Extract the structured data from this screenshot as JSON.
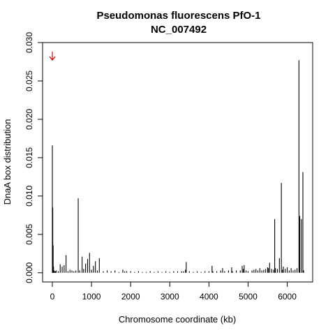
{
  "chart_data": {
    "type": "bar",
    "title": "Pseudomonas fluorescens PfO-1",
    "subtitle": "NC_007492",
    "xlabel": "Chromosome coordinate (kb)",
    "ylabel": "DnaA box distribution",
    "xlim": [
      -250,
      6650
    ],
    "ylim": [
      -0.0012,
      0.03
    ],
    "xticks": [
      0,
      1000,
      2000,
      3000,
      4000,
      5000,
      6000
    ],
    "yticks": [
      0.0,
      0.005,
      0.01,
      0.015,
      0.02,
      0.025,
      0.03
    ],
    "ytick_labels": [
      "0.000",
      "0.005",
      "0.010",
      "0.015",
      "0.020",
      "0.025",
      "0.030"
    ],
    "arrow_marker": {
      "x": 0,
      "color": "#cc0000"
    },
    "line_color": "#000000",
    "grid": false,
    "x": [
      0,
      10,
      20,
      30,
      40,
      60,
      80,
      100,
      150,
      200,
      250,
      300,
      350,
      400,
      450,
      500,
      550,
      600,
      660,
      700,
      760,
      800,
      850,
      900,
      950,
      1000,
      1050,
      1100,
      1150,
      1200,
      1300,
      1400,
      1500,
      1600,
      1700,
      1800,
      1850,
      1900,
      2000,
      2100,
      2200,
      2300,
      2400,
      2500,
      2600,
      2700,
      2800,
      2900,
      3000,
      3100,
      3200,
      3300,
      3350,
      3400,
      3420,
      3500,
      3600,
      3700,
      3800,
      3900,
      4000,
      4080,
      4100,
      4200,
      4300,
      4350,
      4400,
      4500,
      4580,
      4600,
      4700,
      4800,
      4850,
      4880,
      4900,
      4950,
      5000,
      5100,
      5150,
      5200,
      5250,
      5300,
      5350,
      5400,
      5450,
      5500,
      5520,
      5550,
      5600,
      5650,
      5680,
      5700,
      5750,
      5800,
      5850,
      5880,
      5900,
      5950,
      6000,
      6050,
      6100,
      6150,
      6200,
      6250,
      6300,
      6320,
      6360,
      6400,
      6420
    ],
    "values": [
      0.0166,
      0.0085,
      0.0036,
      0.0008,
      0.0003,
      0.0002,
      0.0002,
      0.0003,
      0.0002,
      0.0011,
      0.0008,
      0.001,
      0.0023,
      0.0002,
      0.0004,
      0.0003,
      0.0002,
      0.0003,
      0.0097,
      0.0003,
      0.0021,
      0.0005,
      0.0012,
      0.0018,
      0.0026,
      0.0004,
      0.0009,
      0.0015,
      0.0003,
      0.0019,
      0.0002,
      0.0003,
      0.0002,
      0.0003,
      0.0001,
      0.0004,
      0.0002,
      0.0002,
      0.0002,
      0.0001,
      0.0002,
      0.0001,
      0.0001,
      0.0002,
      0.0001,
      0.0002,
      0.0001,
      0.0002,
      0.0001,
      0.0002,
      0.0002,
      0.0002,
      0.0002,
      0.0004,
      0.0014,
      0.0002,
      0.0001,
      0.0002,
      0.0001,
      0.0002,
      0.0002,
      0.0009,
      0.0002,
      0.0002,
      0.0003,
      0.0006,
      0.0002,
      0.0003,
      0.0007,
      0.0002,
      0.0003,
      0.0003,
      0.0009,
      0.0005,
      0.001,
      0.0003,
      0.0002,
      0.0003,
      0.0004,
      0.0005,
      0.0003,
      0.0006,
      0.0003,
      0.0004,
      0.0005,
      0.0007,
      0.0006,
      0.0013,
      0.0005,
      0.0004,
      0.007,
      0.0006,
      0.0005,
      0.0019,
      0.0117,
      0.0004,
      0.0008,
      0.0005,
      0.0007,
      0.0003,
      0.0006,
      0.0003,
      0.0004,
      0.0006,
      0.0277,
      0.0074,
      0.007,
      0.0131,
      0.0003
    ]
  }
}
